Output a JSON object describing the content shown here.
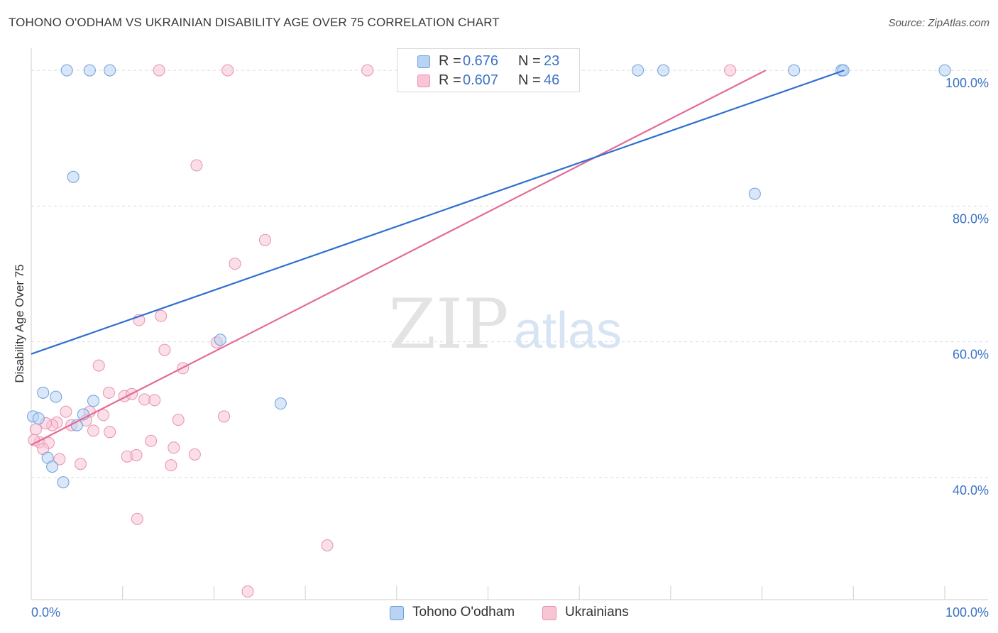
{
  "title": "TOHONO O'ODHAM VS UKRAINIAN DISABILITY AGE OVER 75 CORRELATION CHART",
  "source": "Source: ZipAtlas.com",
  "watermark": {
    "zip": "ZIP",
    "atlas": "atlas"
  },
  "colors": {
    "blue_fill": "#b9d3f2",
    "blue_stroke": "#6a9fde",
    "blue_line": "#2f6fcf",
    "pink_fill": "#f8c5d5",
    "pink_stroke": "#ea90ad",
    "pink_line": "#e36b97",
    "value_text": "#3b73c4"
  },
  "legend": {
    "rows": [
      {
        "r_label": "R =",
        "r_value": "0.676",
        "n_label": "N =",
        "n_value": "23"
      },
      {
        "r_label": "R =",
        "r_value": "0.607",
        "n_label": "N =",
        "n_value": "46"
      }
    ]
  },
  "bottom_legend": [
    "Tohono O'odham",
    "Ukrainians"
  ],
  "chart_data": {
    "type": "scatter",
    "title": "TOHONO O'ODHAM VS UKRAINIAN DISABILITY AGE OVER 75 CORRELATION CHART",
    "xlabel": "",
    "ylabel": "Disability Age Over 75",
    "xlim": [
      0,
      100
    ],
    "ylim": [
      22,
      102
    ],
    "x_tick_labels": [
      "0.0%",
      "100.0%"
    ],
    "y_ticks": [
      40,
      60,
      80,
      100
    ],
    "y_tick_labels": [
      "40.0%",
      "60.0%",
      "80.0%",
      "100.0%"
    ],
    "grid": true,
    "series": [
      {
        "name": "Tohono O'odham",
        "r": 0.676,
        "n": 23,
        "trendline": {
          "x0": 0,
          "y0": 58.2,
          "x1": 89,
          "y1": 100
        },
        "points": [
          {
            "x": 3.9,
            "y": 100
          },
          {
            "x": 6.4,
            "y": 100
          },
          {
            "x": 8.6,
            "y": 100
          },
          {
            "x": 66.4,
            "y": 100
          },
          {
            "x": 69.2,
            "y": 100
          },
          {
            "x": 83.5,
            "y": 100
          },
          {
            "x": 88.7,
            "y": 100
          },
          {
            "x": 88.9,
            "y": 100
          },
          {
            "x": 100,
            "y": 100
          },
          {
            "x": 4.6,
            "y": 84.3
          },
          {
            "x": 79.2,
            "y": 81.8
          },
          {
            "x": 20.7,
            "y": 60.3
          },
          {
            "x": 27.3,
            "y": 50.9
          },
          {
            "x": 1.3,
            "y": 52.5
          },
          {
            "x": 2.7,
            "y": 51.9
          },
          {
            "x": 6.8,
            "y": 51.3
          },
          {
            "x": 5.7,
            "y": 49.3
          },
          {
            "x": 0.2,
            "y": 49.0
          },
          {
            "x": 0.8,
            "y": 48.7
          },
          {
            "x": 5.0,
            "y": 47.7
          },
          {
            "x": 1.8,
            "y": 42.9
          },
          {
            "x": 2.3,
            "y": 41.6
          },
          {
            "x": 3.5,
            "y": 39.3
          }
        ]
      },
      {
        "name": "Ukrainians",
        "r": 0.607,
        "n": 46,
        "trendline": {
          "x0": 0,
          "y0": 44.8,
          "x1": 80.4,
          "y1": 100
        },
        "points": [
          {
            "x": 14.0,
            "y": 100
          },
          {
            "x": 21.5,
            "y": 100
          },
          {
            "x": 36.8,
            "y": 100
          },
          {
            "x": 76.5,
            "y": 100
          },
          {
            "x": 18.1,
            "y": 86.0
          },
          {
            "x": 25.6,
            "y": 75.0
          },
          {
            "x": 22.3,
            "y": 71.5
          },
          {
            "x": 14.2,
            "y": 63.8
          },
          {
            "x": 11.8,
            "y": 63.2
          },
          {
            "x": 20.3,
            "y": 59.9
          },
          {
            "x": 14.6,
            "y": 58.8
          },
          {
            "x": 16.6,
            "y": 56.1
          },
          {
            "x": 7.4,
            "y": 56.5
          },
          {
            "x": 8.5,
            "y": 52.5
          },
          {
            "x": 10.2,
            "y": 52.0
          },
          {
            "x": 11.0,
            "y": 52.3
          },
          {
            "x": 12.4,
            "y": 51.5
          },
          {
            "x": 13.5,
            "y": 51.4
          },
          {
            "x": 6.4,
            "y": 49.7
          },
          {
            "x": 3.8,
            "y": 49.7
          },
          {
            "x": 7.9,
            "y": 49.2
          },
          {
            "x": 21.1,
            "y": 49.0
          },
          {
            "x": 16.1,
            "y": 48.5
          },
          {
            "x": 6.0,
            "y": 48.4
          },
          {
            "x": 2.8,
            "y": 48.1
          },
          {
            "x": 2.3,
            "y": 47.7
          },
          {
            "x": 4.4,
            "y": 47.7
          },
          {
            "x": 0.5,
            "y": 47.1
          },
          {
            "x": 6.8,
            "y": 46.9
          },
          {
            "x": 8.6,
            "y": 46.7
          },
          {
            "x": 0.9,
            "y": 45.2
          },
          {
            "x": 1.9,
            "y": 45.1
          },
          {
            "x": 13.1,
            "y": 45.4
          },
          {
            "x": 15.6,
            "y": 44.4
          },
          {
            "x": 1.3,
            "y": 44.2
          },
          {
            "x": 10.5,
            "y": 43.1
          },
          {
            "x": 11.5,
            "y": 43.3
          },
          {
            "x": 17.9,
            "y": 43.4
          },
          {
            "x": 3.1,
            "y": 42.7
          },
          {
            "x": 5.4,
            "y": 42.0
          },
          {
            "x": 15.3,
            "y": 41.8
          },
          {
            "x": 11.6,
            "y": 33.9
          },
          {
            "x": 32.4,
            "y": 30.0
          },
          {
            "x": 23.7,
            "y": 23.2
          },
          {
            "x": 0.3,
            "y": 45.5
          },
          {
            "x": 1.6,
            "y": 48.0
          }
        ]
      }
    ]
  }
}
